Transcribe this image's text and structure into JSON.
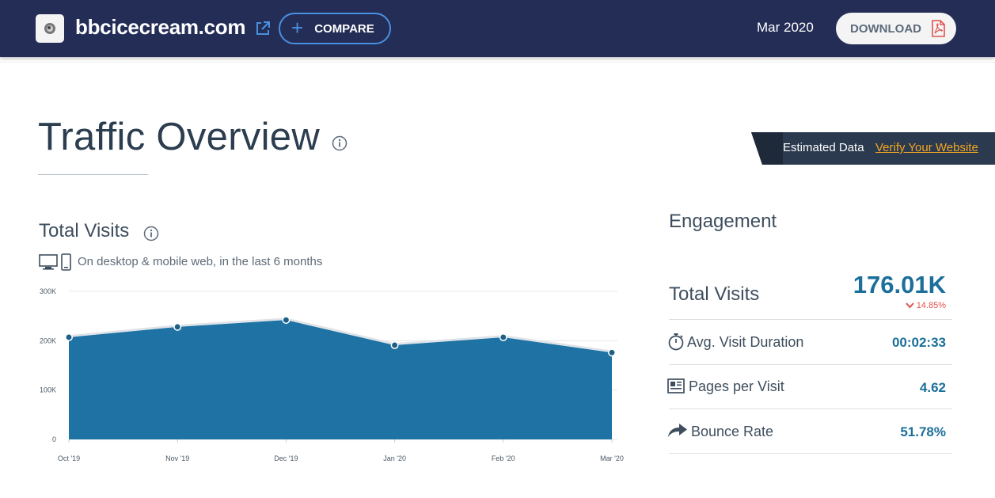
{
  "header": {
    "site_name": "bbcicecream.com",
    "compare_label": "COMPARE",
    "period": "Mar 2020",
    "download_label": "DOWNLOAD"
  },
  "traffic": {
    "title": "Traffic Overview",
    "estimated_label": "Estimated Data",
    "verify_link": "Verify Your Website"
  },
  "total_visits": {
    "heading": "Total Visits",
    "device_caption": "On desktop & mobile web, in the last 6 months"
  },
  "engagement": {
    "heading": "Engagement",
    "total_visits_label": "Total Visits",
    "total_visits_value": "176.01K",
    "total_visits_change": "14.85%",
    "change_direction": "down",
    "rows": [
      {
        "icon": "stopwatch-icon",
        "label": "Avg. Visit Duration",
        "value": "00:02:33"
      },
      {
        "icon": "pages-icon",
        "label": "Pages per Visit",
        "value": "4.62"
      },
      {
        "icon": "share-arrow-icon",
        "label": "Bounce Rate",
        "value": "51.78%"
      }
    ]
  },
  "colors": {
    "header_bg": "#232d55",
    "accent": "#1b6f9a",
    "area_fill": "#1e73a4",
    "link": "#f5a623",
    "negative": "#e0534e"
  },
  "chart_data": {
    "type": "area",
    "categories": [
      "Oct '19",
      "Nov '19",
      "Dec '19",
      "Jan '20",
      "Feb '20",
      "Mar '20"
    ],
    "values": [
      207000,
      228000,
      242000,
      191000,
      207000,
      176010
    ],
    "yticks": [
      "0",
      "100K",
      "200K",
      "300K"
    ],
    "ylim": [
      0,
      300000
    ],
    "grid": true
  }
}
